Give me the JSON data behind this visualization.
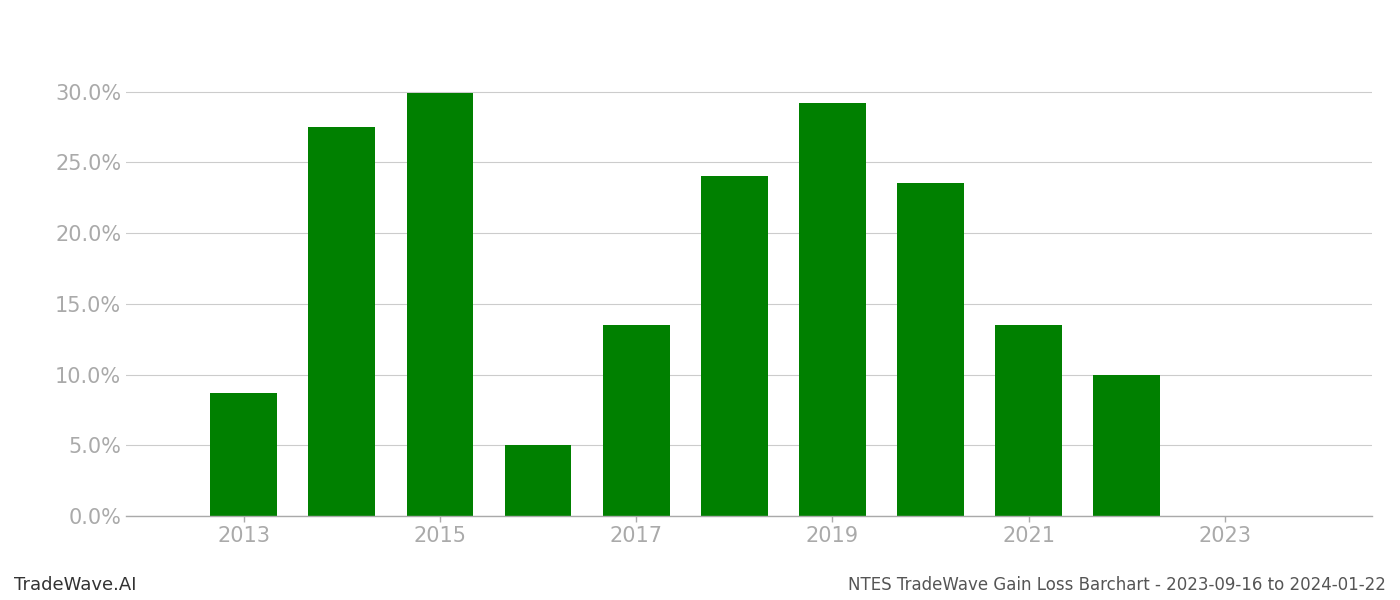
{
  "years": [
    2013,
    2014,
    2015,
    2016,
    2017,
    2018,
    2019,
    2020,
    2021,
    2022,
    2023
  ],
  "values": [
    0.087,
    0.275,
    0.299,
    0.05,
    0.135,
    0.24,
    0.292,
    0.235,
    0.135,
    0.1,
    0.0
  ],
  "bar_color": "#008000",
  "background_color": "#ffffff",
  "yticks": [
    0.0,
    0.05,
    0.1,
    0.15,
    0.2,
    0.25,
    0.3
  ],
  "ytick_labels": [
    "0.0%",
    "5.0%",
    "10.0%",
    "15.0%",
    "20.0%",
    "25.0%",
    "30.0%"
  ],
  "ylim": [
    0,
    0.335
  ],
  "xtick_labels": [
    "2013",
    "2015",
    "2017",
    "2019",
    "2021",
    "2023"
  ],
  "xtick_positions": [
    2013,
    2015,
    2017,
    2019,
    2021,
    2023
  ],
  "footer_left": "TradeWave.AI",
  "footer_right": "NTES TradeWave Gain Loss Barchart - 2023-09-16 to 2024-01-22",
  "grid_color": "#cccccc",
  "axis_color": "#aaaaaa",
  "tick_color": "#aaaaaa",
  "bar_width": 0.68,
  "xlim_left": 2011.8,
  "xlim_right": 2024.5
}
